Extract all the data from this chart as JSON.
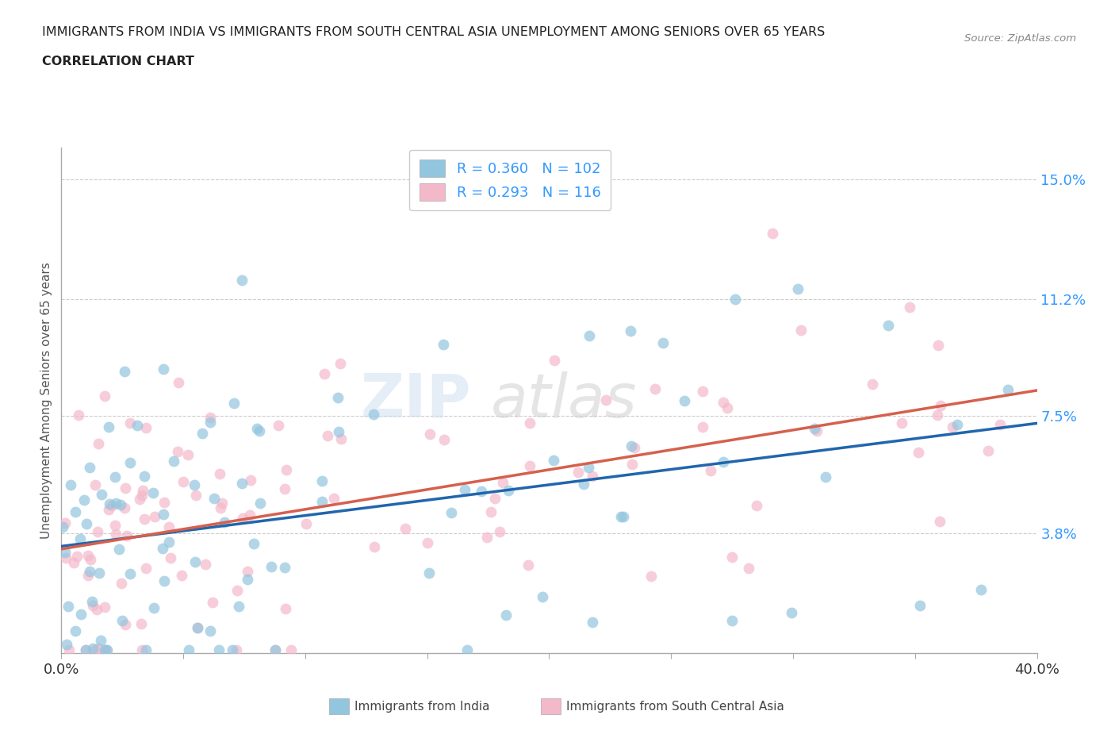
{
  "title_line1": "IMMIGRANTS FROM INDIA VS IMMIGRANTS FROM SOUTH CENTRAL ASIA UNEMPLOYMENT AMONG SENIORS OVER 65 YEARS",
  "title_line2": "CORRELATION CHART",
  "source": "Source: ZipAtlas.com",
  "ylabel": "Unemployment Among Seniors over 65 years",
  "xlim": [
    0.0,
    0.4
  ],
  "ylim": [
    0.0,
    0.16
  ],
  "ytick_vals": [
    0.038,
    0.075,
    0.112,
    0.15
  ],
  "ytick_labels": [
    "3.8%",
    "7.5%",
    "11.2%",
    "15.0%"
  ],
  "xtick_vals": [
    0.0,
    0.05,
    0.1,
    0.15,
    0.2,
    0.25,
    0.3,
    0.35,
    0.4
  ],
  "xtick_edge_labels": [
    "0.0%",
    "40.0%"
  ],
  "legend_r1": "R = 0.360",
  "legend_n1": "N = 102",
  "legend_r2": "R = 0.293",
  "legend_n2": "N = 116",
  "color_india": "#92c5de",
  "color_sca": "#f4b8cb",
  "color_india_line": "#2166ac",
  "color_sca_line": "#d6604d",
  "legend_label1": "Immigrants from India",
  "legend_label2": "Immigrants from South Central Asia",
  "watermark_zip": "ZIP",
  "watermark_atlas": "atlas",
  "background_color": "#ffffff",
  "grid_color": "#cccccc",
  "title_color": "#333333",
  "tick_label_color": "#3399ff"
}
